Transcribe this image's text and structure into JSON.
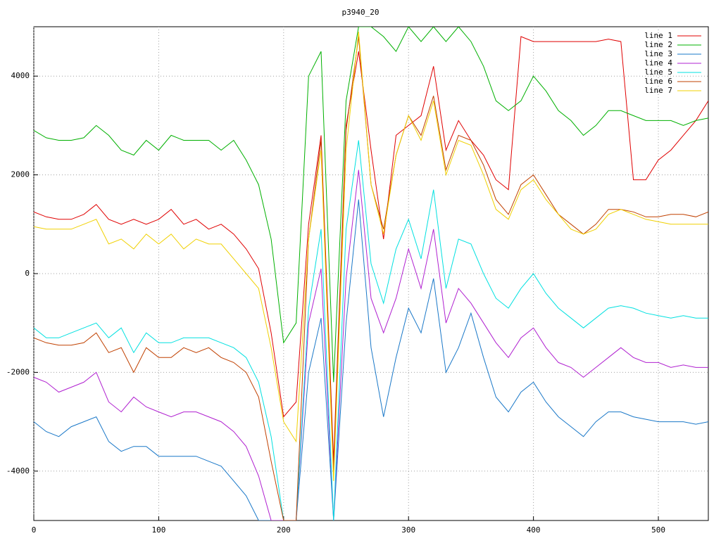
{
  "chart_data": {
    "type": "line",
    "title": "p3940_20",
    "x": [
      0,
      10,
      20,
      30,
      40,
      50,
      60,
      70,
      80,
      90,
      100,
      110,
      120,
      130,
      140,
      150,
      160,
      170,
      180,
      190,
      200,
      210,
      220,
      230,
      240,
      250,
      260,
      270,
      280,
      290,
      300,
      310,
      320,
      330,
      340,
      350,
      360,
      370,
      380,
      390,
      400,
      410,
      420,
      430,
      440,
      450,
      460,
      470,
      480,
      490,
      500,
      510,
      520,
      530,
      540
    ],
    "xlim": [
      0,
      540
    ],
    "xticks": [
      0,
      100,
      200,
      300,
      400,
      500
    ],
    "ylim": [
      -5000,
      5000
    ],
    "yticks": [
      -4000,
      -2000,
      0,
      2000,
      4000
    ],
    "grid": true,
    "legend": "top-right",
    "series": [
      {
        "name": "line 1",
        "color": "#e00000",
        "values": [
          1250,
          1150,
          1100,
          1100,
          1200,
          1400,
          1100,
          1000,
          1100,
          1000,
          1100,
          1300,
          1000,
          1100,
          900,
          1000,
          800,
          500,
          100,
          -1200,
          -2900,
          -2600,
          1000,
          2800,
          -3800,
          3000,
          4500,
          2500,
          700,
          2800,
          3000,
          3200,
          4200,
          2500,
          3100,
          2700,
          2400,
          1900,
          1700,
          4800,
          4700,
          4700,
          4700,
          4700,
          4700,
          4700,
          4750,
          4700,
          1900,
          1900,
          2300,
          2500,
          2800,
          3100,
          3500
        ]
      },
      {
        "name": "line 2",
        "color": "#00b000",
        "values": [
          2900,
          2750,
          2700,
          2700,
          2750,
          3000,
          2800,
          2500,
          2400,
          2700,
          2500,
          2800,
          2700,
          2700,
          2700,
          2500,
          2700,
          2300,
          1800,
          700,
          -1400,
          -1000,
          4000,
          4500,
          -2200,
          3500,
          5000,
          5000,
          4800,
          4500,
          5000,
          4700,
          5000,
          4700,
          5000,
          4700,
          4200,
          3500,
          3300,
          3500,
          4000,
          3700,
          3300,
          3100,
          2800,
          3000,
          3300,
          3300,
          3200,
          3100,
          3100,
          3100,
          3000,
          3100,
          3150
        ]
      },
      {
        "name": "line 3",
        "color": "#1a78c8",
        "values": [
          -3000,
          -3200,
          -3300,
          -3100,
          -3000,
          -2900,
          -3400,
          -3600,
          -3500,
          -3500,
          -3700,
          -3700,
          -3700,
          -3700,
          -3800,
          -3900,
          -4200,
          -4500,
          -5000,
          -5000,
          -5000,
          -5000,
          -2000,
          -900,
          -5000,
          -1000,
          1500,
          -1500,
          -2900,
          -1700,
          -700,
          -1200,
          -100,
          -2000,
          -1500,
          -800,
          -1700,
          -2500,
          -2800,
          -2400,
          -2200,
          -2600,
          -2900,
          -3100,
          -3300,
          -3000,
          -2800,
          -2800,
          -2900,
          -2950,
          -3000,
          -3000,
          -3000,
          -3050,
          -3000
        ]
      },
      {
        "name": "line 4",
        "color": "#b020d0",
        "values": [
          -2100,
          -2200,
          -2400,
          -2300,
          -2200,
          -2000,
          -2600,
          -2800,
          -2500,
          -2700,
          -2800,
          -2900,
          -2800,
          -2800,
          -2900,
          -3000,
          -3200,
          -3500,
          -4100,
          -5000,
          -5000,
          -5000,
          -1000,
          100,
          -5000,
          -100,
          2100,
          -500,
          -1200,
          -500,
          500,
          -300,
          900,
          -1000,
          -300,
          -600,
          -1000,
          -1400,
          -1700,
          -1300,
          -1100,
          -1500,
          -1800,
          -1900,
          -2100,
          -1900,
          -1700,
          -1500,
          -1700,
          -1800,
          -1800,
          -1900,
          -1850,
          -1900,
          -1900
        ]
      },
      {
        "name": "line 5",
        "color": "#00e0e0",
        "values": [
          -1100,
          -1300,
          -1300,
          -1200,
          -1100,
          -1000,
          -1300,
          -1100,
          -1600,
          -1200,
          -1400,
          -1400,
          -1300,
          -1300,
          -1300,
          -1400,
          -1500,
          -1700,
          -2200,
          -3300,
          -5000,
          -5000,
          -700,
          900,
          -5000,
          900,
          2700,
          200,
          -600,
          500,
          1100,
          300,
          1700,
          -300,
          700,
          600,
          0,
          -500,
          -700,
          -300,
          0,
          -400,
          -700,
          -900,
          -1100,
          -900,
          -700,
          -650,
          -700,
          -800,
          -850,
          -900,
          -850,
          -900,
          -900
        ]
      },
      {
        "name": "line 6",
        "color": "#c04000",
        "values": [
          -1300,
          -1400,
          -1450,
          -1450,
          -1400,
          -1200,
          -1600,
          -1500,
          -2000,
          -1500,
          -1700,
          -1700,
          -1500,
          -1600,
          -1500,
          -1700,
          -1800,
          -2000,
          -2500,
          -3800,
          -5000,
          -5000,
          700,
          2700,
          -4000,
          2900,
          4800,
          1800,
          900,
          2400,
          3200,
          2800,
          3600,
          2100,
          2800,
          2700,
          2200,
          1500,
          1200,
          1800,
          2000,
          1600,
          1200,
          1000,
          800,
          1000,
          1300,
          1300,
          1250,
          1150,
          1150,
          1200,
          1200,
          1150,
          1250
        ]
      },
      {
        "name": "line 7",
        "color": "#f0d000",
        "values": [
          950,
          900,
          900,
          900,
          1000,
          1100,
          600,
          700,
          500,
          800,
          600,
          800,
          500,
          700,
          600,
          600,
          300,
          0,
          -300,
          -1500,
          -3000,
          -3400,
          700,
          2500,
          -4200,
          2500,
          4900,
          1800,
          800,
          2400,
          3200,
          2700,
          3500,
          2000,
          2700,
          2600,
          2000,
          1300,
          1100,
          1700,
          1900,
          1500,
          1200,
          900,
          800,
          900,
          1200,
          1300,
          1200,
          1100,
          1050,
          1000,
          1000,
          1000,
          1000
        ]
      }
    ]
  }
}
